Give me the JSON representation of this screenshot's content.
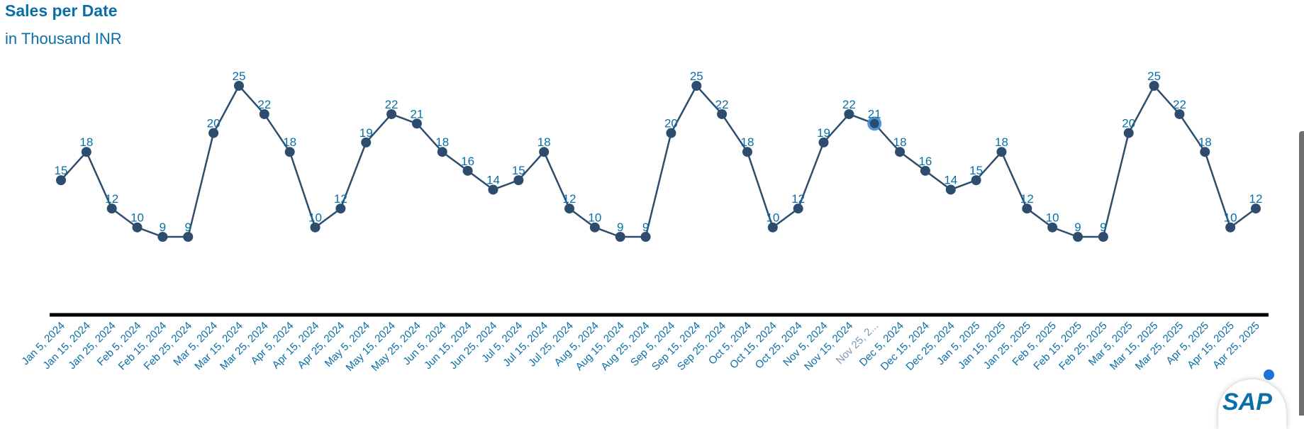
{
  "header": {
    "title": "Sales per Date",
    "subtitle": "in Thousand INR"
  },
  "colors": {
    "line": "#2e4d6e",
    "label": "#0a6fa7",
    "highlight": "#3b8fd9",
    "axis": "#000000"
  },
  "badge": {
    "logo_text": "SAP"
  },
  "chart_data": {
    "type": "line",
    "title": "Sales per Date",
    "subtitle": "in Thousand INR",
    "xlabel": "",
    "ylabel": "",
    "grid": false,
    "legend": "none",
    "ylim": [
      0,
      25
    ],
    "x": [
      "Jan 5, 2024",
      "Jan 15, 2024",
      "Jan 25, 2024",
      "Feb 5, 2024",
      "Feb 15, 2024",
      "Feb 25, 2024",
      "Mar 5, 2024",
      "Mar 15, 2024",
      "Mar 25, 2024",
      "Apr 5, 2024",
      "Apr 15, 2024",
      "Apr 25, 2024",
      "May 5, 2024",
      "May 15, 2024",
      "May 25, 2024",
      "Jun 5, 2024",
      "Jun 15, 2024",
      "Jun 25, 2024",
      "Jul 5, 2024",
      "Jul 15, 2024",
      "Jul 25, 2024",
      "Aug 5, 2024",
      "Aug 15, 2024",
      "Aug 25, 2024",
      "Sep 5, 2024",
      "Sep 15, 2024",
      "Sep 25, 2024",
      "Oct 5, 2024",
      "Oct 15, 2024",
      "Oct 25, 2024",
      "Nov 5, 2024",
      "Nov 15, 2024",
      "Nov 25, 2...",
      "Dec 5, 2024",
      "Dec 15, 2024",
      "Dec 25, 2024",
      "Jan 5, 2025",
      "Jan 15, 2025",
      "Jan 25, 2025",
      "Feb 5, 2025",
      "Feb 15, 2025",
      "Feb 25, 2025",
      "Mar 5, 2025",
      "Mar 15, 2025",
      "Mar 25, 2025",
      "Apr 5, 2025",
      "Apr 15, 2025",
      "Apr 25, 2025"
    ],
    "values": [
      15,
      18,
      12,
      10,
      9,
      9,
      20,
      25,
      22,
      18,
      10,
      12,
      19,
      22,
      21,
      18,
      16,
      14,
      15,
      18,
      12,
      10,
      9,
      9,
      20,
      25,
      22,
      18,
      10,
      12,
      19,
      22,
      21,
      18,
      16,
      14,
      15,
      18,
      12,
      10,
      9,
      9,
      20,
      25,
      22,
      18,
      10,
      12
    ],
    "highlighted_index": 32
  }
}
